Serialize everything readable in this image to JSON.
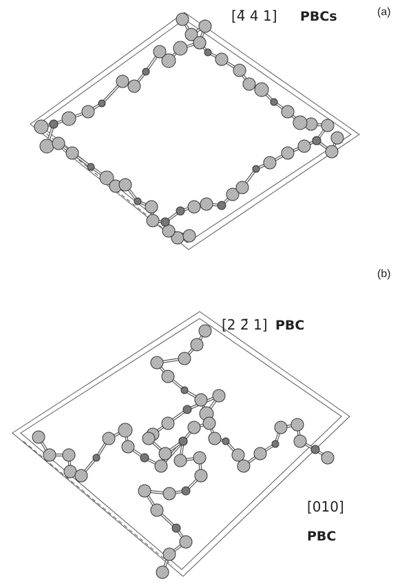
{
  "panels": [
    {
      "label": "(a)",
      "direction": "[4̄ 4 1]",
      "name": "PBCs"
    },
    {
      "label": "(b)",
      "direction": "[2 2̄ 1]",
      "name": "PBC",
      "direction2": "[010]",
      "name2": "PBC"
    }
  ]
}
